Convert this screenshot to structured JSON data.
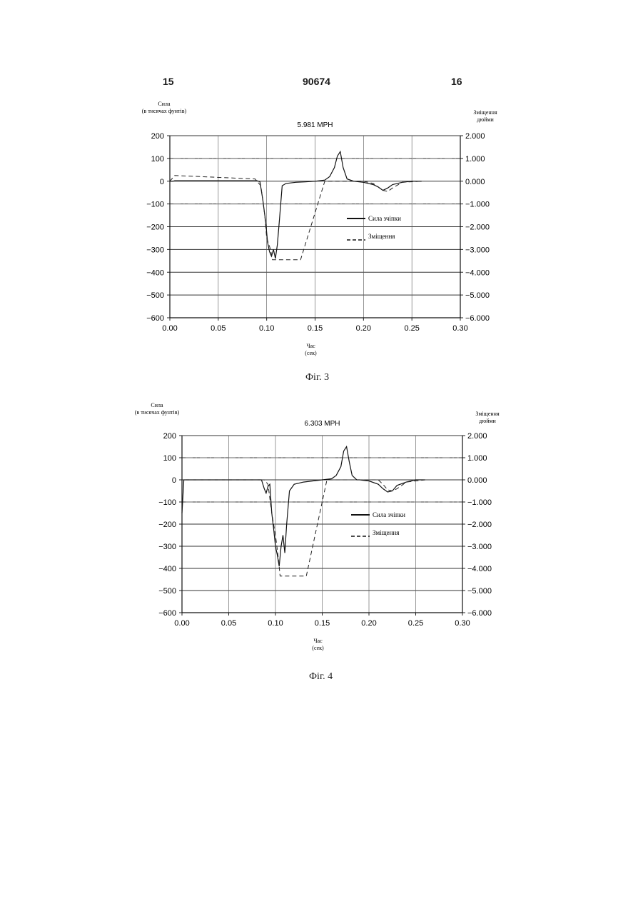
{
  "page": {
    "number_left": "15",
    "document_number": "90674",
    "number_right": "16"
  },
  "chart_data": [
    {
      "type": "line",
      "title": "5.981 MPH",
      "caption": "Фіг. 3",
      "ylabel": [
        "Сила",
        "(в тисячах фунтів)"
      ],
      "y2label": [
        "Зміщення",
        "дюйми"
      ],
      "xlabel": [
        "Час",
        "(сек)"
      ],
      "xlim": [
        0,
        0.3
      ],
      "ylim": [
        -600,
        200
      ],
      "y2lim": [
        -6,
        2
      ],
      "x_ticks": [
        "0.00",
        "0.05",
        "0.10",
        "0.15",
        "0.20",
        "0.25",
        "0.30"
      ],
      "y_ticks": [
        "200",
        "100",
        "0",
        "−100",
        "−200",
        "−300",
        "−400",
        "−500",
        "−600"
      ],
      "y2_ticks": [
        "2.000",
        "1.000",
        "0.000",
        "−1.000",
        "−2.000",
        "−3.000",
        "−4.000",
        "−5.000",
        "−6.000"
      ],
      "grid": true,
      "legend_position": "right-middle",
      "series": [
        {
          "name": "Сила зчіпки",
          "style": "solid",
          "x": [
            0.0,
            0.003,
            0.005,
            0.09,
            0.093,
            0.096,
            0.099,
            0.101,
            0.103,
            0.105,
            0.107,
            0.109,
            0.111,
            0.113,
            0.116,
            0.12,
            0.13,
            0.14,
            0.15,
            0.16,
            0.165,
            0.17,
            0.173,
            0.176,
            0.179,
            0.183,
            0.19,
            0.2,
            0.21,
            0.215,
            0.22,
            0.225,
            0.23,
            0.24,
            0.25,
            0.26
          ],
          "y": [
            0,
            0,
            2,
            2,
            -2,
            -80,
            -180,
            -270,
            -310,
            -330,
            -300,
            -340,
            -280,
            -180,
            -20,
            -10,
            -5,
            -3,
            0,
            5,
            20,
            60,
            110,
            130,
            60,
            10,
            0,
            -5,
            -15,
            -25,
            -40,
            -30,
            -15,
            -5,
            0,
            0
          ]
        },
        {
          "name": "Зміщення",
          "style": "dashed",
          "x": [
            0.0,
            0.005,
            0.088,
            0.094,
            0.098,
            0.1,
            0.104,
            0.106,
            0.12,
            0.135,
            0.16,
            0.2,
            0.21,
            0.22,
            0.225,
            0.23,
            0.24,
            0.26
          ],
          "y": [
            0,
            0.25,
            0.1,
            -0.2,
            -1.5,
            -2.5,
            -3.0,
            -3.45,
            -3.45,
            -3.45,
            0,
            0,
            -0.1,
            -0.4,
            -0.45,
            -0.3,
            -0.05,
            0
          ]
        }
      ]
    },
    {
      "type": "line",
      "title": "6.303 MPH",
      "caption": "Фіг. 4",
      "ylabel": [
        "Сила",
        "(в тисячах фунтів)"
      ],
      "y2label": [
        "Зміщення",
        "дюйми"
      ],
      "xlabel": [
        "Час",
        "(сек)"
      ],
      "xlim": [
        0,
        0.3
      ],
      "ylim": [
        -600,
        200
      ],
      "y2lim": [
        -6,
        2
      ],
      "x_ticks": [
        "0.00",
        "0.05",
        "0.10",
        "0.15",
        "0.20",
        "0.25",
        "0.30"
      ],
      "y_ticks": [
        "200",
        "100",
        "0",
        "−100",
        "−200",
        "−300",
        "−400",
        "−500",
        "−600"
      ],
      "y2_ticks": [
        "2.000",
        "1.000",
        "0.000",
        "−1.000",
        "−2.000",
        "−3.000",
        "−4.000",
        "−5.000",
        "−6.000"
      ],
      "grid": true,
      "legend_position": "right-middle",
      "series": [
        {
          "name": "Сила зчіпки",
          "style": "solid",
          "x": [
            0.0,
            0.002,
            0.005,
            0.085,
            0.088,
            0.09,
            0.092,
            0.094,
            0.096,
            0.098,
            0.1,
            0.102,
            0.104,
            0.106,
            0.108,
            0.11,
            0.112,
            0.115,
            0.12,
            0.13,
            0.14,
            0.15,
            0.16,
            0.165,
            0.17,
            0.173,
            0.176,
            0.179,
            0.182,
            0.187,
            0.19,
            0.2,
            0.21,
            0.215,
            0.22,
            0.225,
            0.23,
            0.24,
            0.25,
            0.26
          ],
          "y": [
            -150,
            0,
            0,
            0,
            -40,
            -60,
            -30,
            -20,
            -150,
            -220,
            -300,
            -340,
            -390,
            -300,
            -250,
            -330,
            -200,
            -50,
            -20,
            -10,
            -5,
            0,
            5,
            20,
            60,
            130,
            150,
            80,
            20,
            0,
            0,
            -5,
            -20,
            -40,
            -55,
            -50,
            -25,
            -10,
            0,
            0
          ]
        },
        {
          "name": "Зміщення",
          "style": "dashed",
          "x": [
            0.0,
            0.005,
            0.088,
            0.092,
            0.096,
            0.1,
            0.103,
            0.105,
            0.12,
            0.133,
            0.155,
            0.21,
            0.215,
            0.22,
            0.225,
            0.23,
            0.235,
            0.24,
            0.26
          ],
          "y": [
            0,
            0,
            0,
            -0.2,
            -1.5,
            -2.5,
            -3.5,
            -4.35,
            -4.35,
            -4.35,
            0,
            0,
            -0.2,
            -0.45,
            -0.5,
            -0.4,
            -0.25,
            -0.1,
            0
          ]
        }
      ]
    }
  ]
}
